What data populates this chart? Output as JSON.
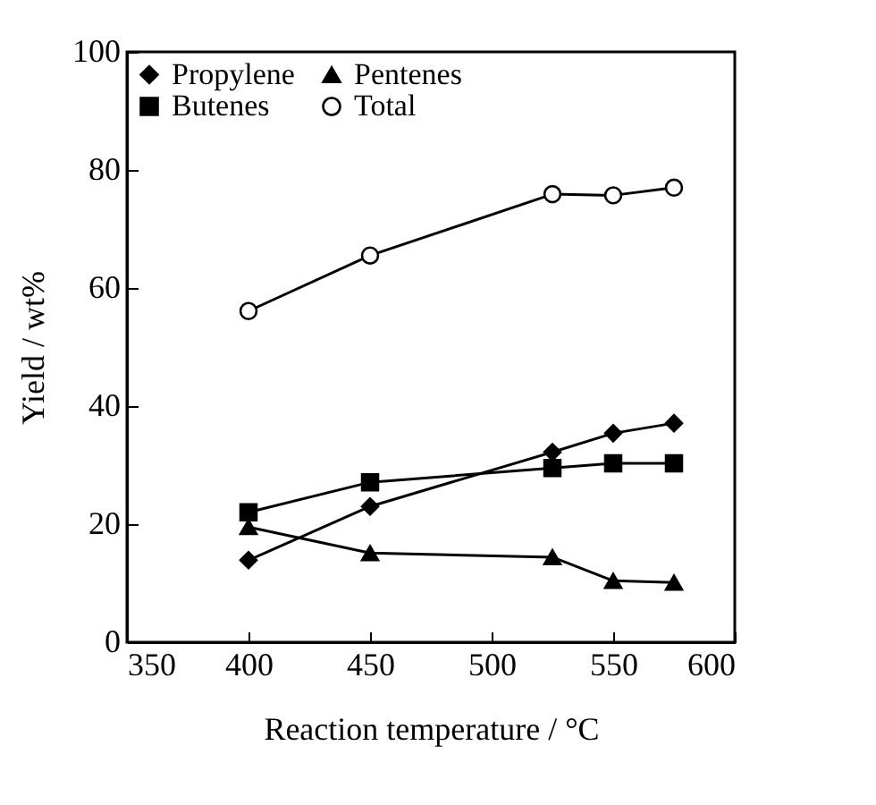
{
  "chart_data": {
    "type": "line",
    "xlabel": "Reaction temperature / °C",
    "ylabel": "Yield / wt%",
    "x": [
      400,
      450,
      525,
      550,
      575
    ],
    "series": [
      {
        "name": "Propylene",
        "color": "#000000",
        "marker": "diamond",
        "values": [
          13.9,
          23,
          32.2,
          35.4,
          37.1
        ]
      },
      {
        "name": "Butenes",
        "color": "#000000",
        "marker": "square",
        "values": [
          22,
          27.1,
          29.5,
          30.3,
          30.3
        ]
      },
      {
        "name": "Pentenes",
        "color": "#000000",
        "marker": "triangle",
        "values": [
          19.5,
          15.1,
          14.4,
          10.4,
          10.1
        ]
      },
      {
        "name": "Total",
        "color": "#000000",
        "marker": "circle",
        "values": [
          56.1,
          65.5,
          75.9,
          75.7,
          77
        ]
      }
    ],
    "xlim": [
      350,
      600
    ],
    "xticks": [
      350,
      400,
      450,
      500,
      550,
      600
    ],
    "ylim": [
      0,
      100
    ],
    "yticks": [
      0,
      20,
      40,
      60,
      80,
      100
    ],
    "grid": false,
    "legend": "top",
    "line_style": "solid"
  }
}
